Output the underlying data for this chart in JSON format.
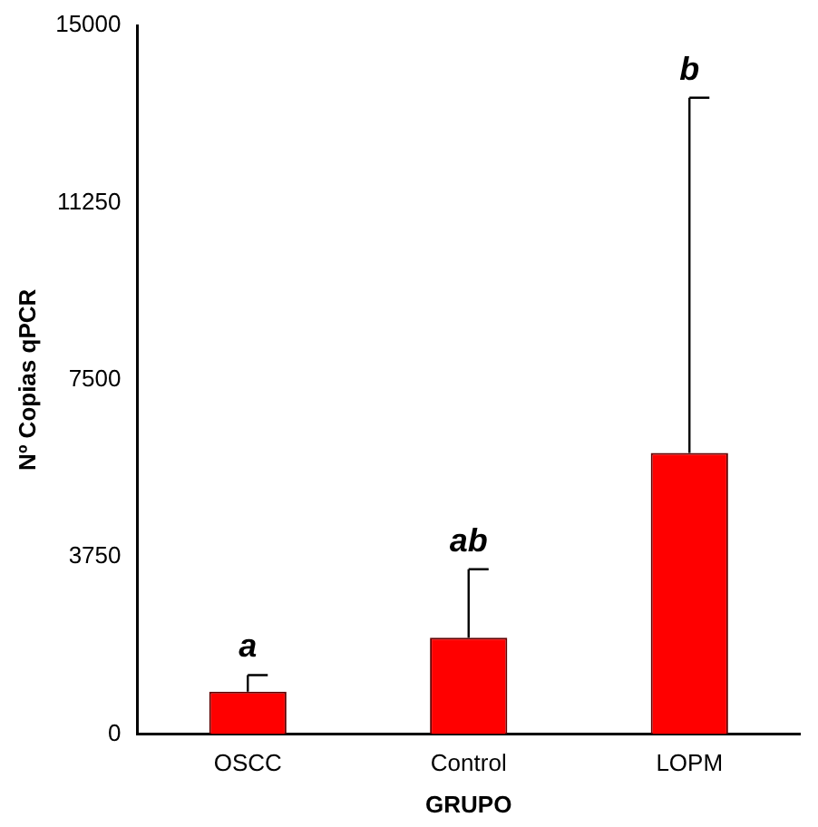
{
  "chart_data": {
    "type": "bar",
    "xlabel": "GRUPO",
    "ylabel": "Nº Copias qPCR",
    "categories": [
      "OSCC",
      "Control",
      "LOPM"
    ],
    "values": [
      900,
      2040,
      5950
    ],
    "color": "#ff0000",
    "errors": [
      [
        900,
        1250
      ],
      [
        2040,
        3490
      ],
      [
        5950,
        13470
      ]
    ],
    "ylim": [
      0,
      15000
    ],
    "yticks": [
      0,
      3750,
      7500,
      11250,
      15000
    ],
    "grid": false,
    "legend": false,
    "annotations": [
      {
        "text": "a",
        "x": "OSCC",
        "y": 1250
      },
      {
        "text": "ab",
        "x": "Control",
        "y": 3490
      },
      {
        "text": "b",
        "x": "LOPM",
        "y": 13470
      }
    ]
  }
}
